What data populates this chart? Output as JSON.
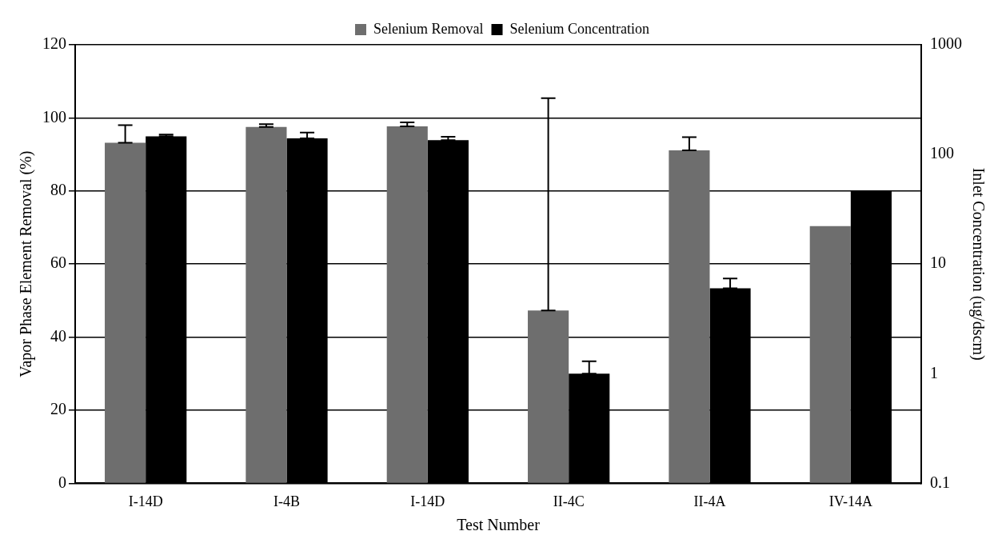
{
  "chart_data": {
    "type": "bar",
    "xlabel": "Test Number",
    "ylabel": "Vapor Phase Element Removal (%)",
    "y2label": "Inlet Concentration (ug/dscm)",
    "categories": [
      "I-14D",
      "I-4B",
      "I-14D",
      "II-4C",
      "II-4A",
      "IV-14A"
    ],
    "series": [
      {
        "name": "Selenium Removal",
        "color": "#6e6e6e",
        "values": [
          93.2,
          97.5,
          97.7,
          47.3,
          91.1,
          70.4
        ],
        "errors": [
          [
            93.2,
            98
          ],
          [
            97.5,
            98.3
          ],
          [
            97.7,
            98.8
          ],
          [
            47.3,
            105.4
          ],
          [
            91.1,
            94.7
          ],
          null
        ]
      },
      {
        "name": "Selenium Concentration",
        "color": "#000000",
        "axis": "y2",
        "values": [
          146,
          140,
          135,
          1.0,
          6.0,
          47
        ],
        "errors": [
          [
            146,
            152
          ],
          [
            140,
            158
          ],
          [
            135,
            145
          ],
          [
            1.0,
            1.3
          ],
          [
            6.0,
            7.4
          ],
          null
        ]
      }
    ],
    "ylim": [
      0,
      120
    ],
    "yticks": [
      0,
      20,
      40,
      60,
      80,
      100,
      120
    ],
    "y2lim": [
      0.1,
      1000
    ],
    "y2ticks": [
      0.1,
      1,
      10,
      100,
      1000
    ],
    "log": "y2",
    "grid": "y",
    "legend": "top"
  }
}
